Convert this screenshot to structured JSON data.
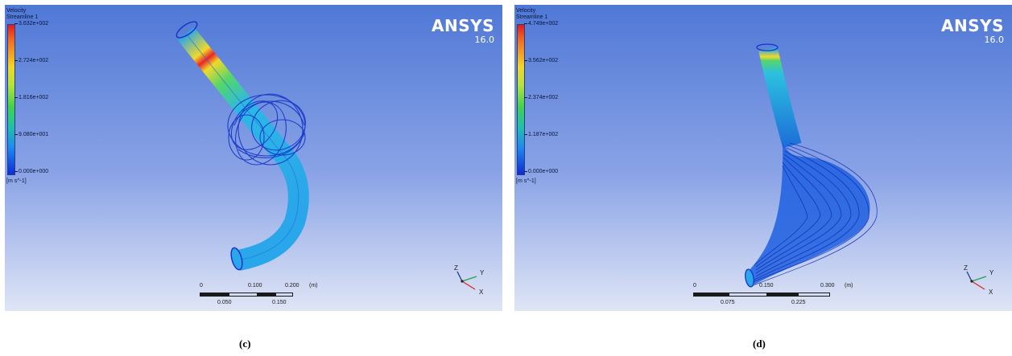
{
  "panels": [
    {
      "legend": {
        "title": "Velocity",
        "subtitle": "Streamline 1",
        "ticks": [
          "3.632e+002",
          "2.724e+002",
          "1.816e+002",
          "9.080e+001",
          "0.000e+000"
        ],
        "unit": "[m s^-1]"
      },
      "brand": {
        "name": "ANSYS",
        "version": "16.0"
      },
      "scale": {
        "top": [
          "0",
          "0.100",
          "0.200",
          "(m)"
        ],
        "bottom": [
          "0.050",
          "0.150"
        ]
      },
      "axes": {
        "z": "Z",
        "y": "Y",
        "x": "X"
      },
      "caption": "(c)"
    },
    {
      "legend": {
        "title": "Velocity",
        "subtitle": "Streamline 1",
        "ticks": [
          "4.749e+002",
          "3.562e+002",
          "2.374e+002",
          "1.187e+002",
          "0.000e+000"
        ],
        "unit": "[m s^-1]"
      },
      "brand": {
        "name": "ANSYS",
        "version": "16.0"
      },
      "scale": {
        "top": [
          "0",
          "0.150",
          "0.300",
          "(m)"
        ],
        "bottom": [
          "0.075",
          "0.225"
        ]
      },
      "axes": {
        "z": "Z",
        "y": "Y",
        "x": "X"
      },
      "caption": "(d)"
    }
  ],
  "colors": {
    "streamline_dark": "#1534c8",
    "streamline_mid": "#26a6ea",
    "hot": "#e8262a",
    "warm": "#f3d42a",
    "green": "#3fcf5a"
  }
}
